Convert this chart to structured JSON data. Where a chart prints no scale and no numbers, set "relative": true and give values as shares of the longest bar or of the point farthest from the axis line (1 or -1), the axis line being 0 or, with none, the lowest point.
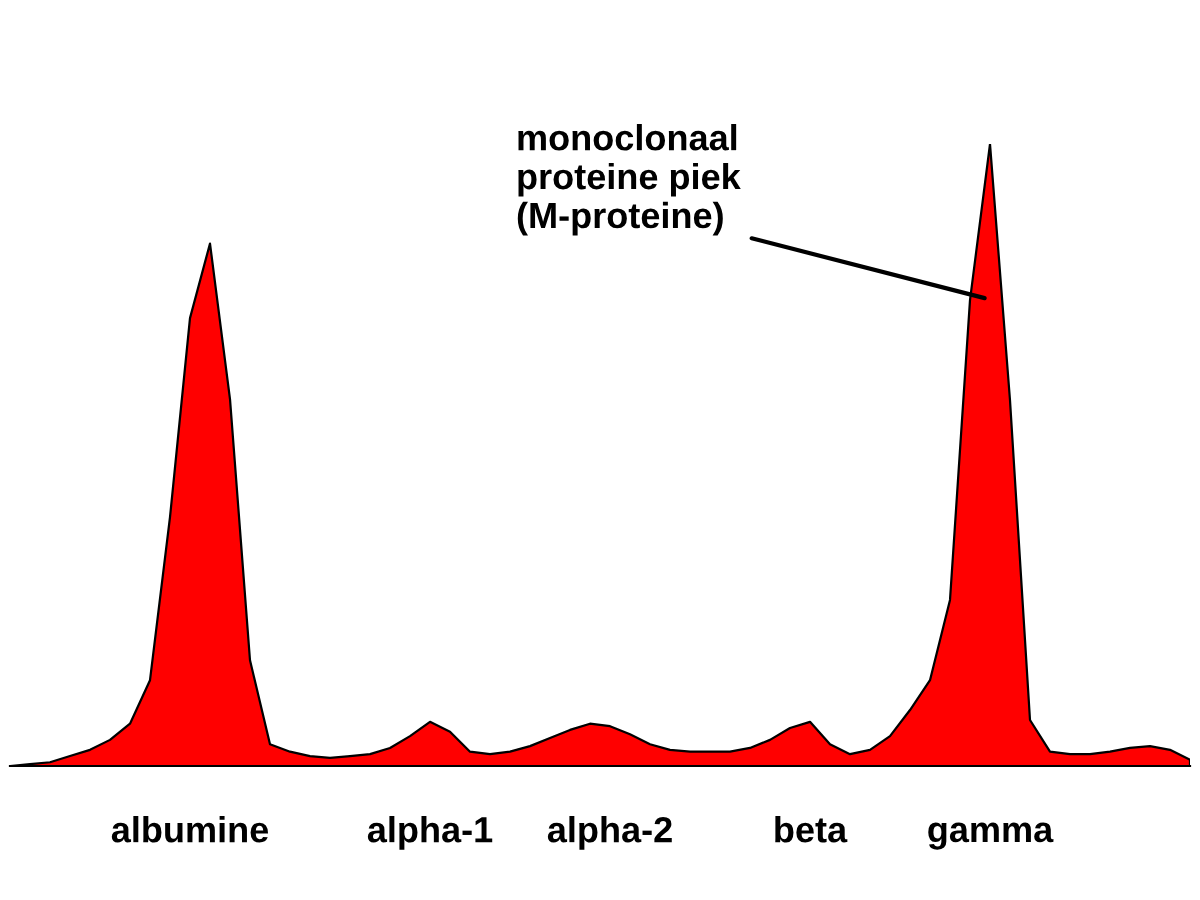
{
  "chart_data": {
    "type": "area",
    "relative": true,
    "color": "#ff0000",
    "tick_labels": "x",
    "grid": false,
    "legend": false,
    "categories": [
      null,
      null,
      null,
      null,
      null,
      null,
      null,
      null,
      null,
      "albumine",
      null,
      null,
      null,
      null,
      null,
      null,
      null,
      null,
      null,
      null,
      null,
      "alpha-1",
      null,
      null,
      null,
      null,
      null,
      null,
      null,
      null,
      "alpha-2",
      null,
      null,
      null,
      null,
      null,
      null,
      null,
      null,
      null,
      "beta",
      null,
      null,
      null,
      null,
      null,
      null,
      null,
      null,
      "gamma",
      null,
      null,
      null,
      null,
      null,
      null,
      null,
      null,
      null,
      null
    ],
    "values": [
      0,
      0.003,
      0.006,
      0.016,
      0.026,
      0.042,
      0.068,
      0.138,
      0.4,
      0.72,
      0.84,
      0.59,
      0.17,
      0.035,
      0.023,
      0.016,
      0.013,
      0.016,
      0.019,
      0.029,
      0.048,
      0.071,
      0.055,
      0.023,
      0.019,
      0.023,
      0.032,
      0.045,
      0.058,
      0.068,
      0.064,
      0.051,
      0.035,
      0.026,
      0.023,
      0.023,
      0.023,
      0.029,
      0.042,
      0.061,
      0.071,
      0.035,
      0.019,
      0.026,
      0.048,
      0.09,
      0.138,
      0.267,
      0.749,
      1,
      0.588,
      0.074,
      0.023,
      0.019,
      0.019,
      0.023,
      0.029,
      0.032,
      0.026,
      0.01
    ],
    "annotations": [
      {
        "text": "monoclonaal\nproteine piek\n(M-proteine)",
        "x": "gamma",
        "y": 0.75
      }
    ]
  }
}
